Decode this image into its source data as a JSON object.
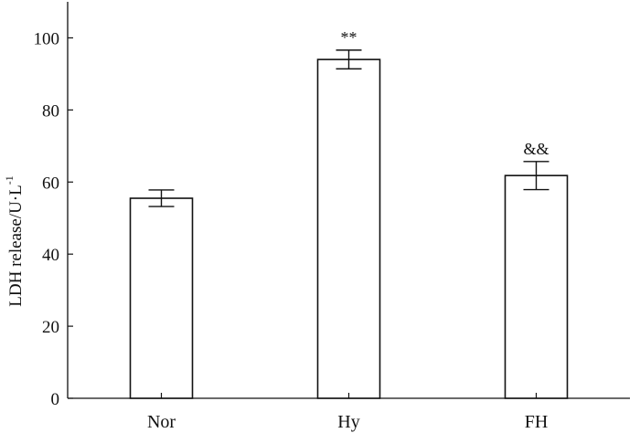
{
  "chart_data": {
    "type": "bar",
    "categories": [
      "Nor",
      "Hy",
      "FH"
    ],
    "values": [
      55.5,
      94,
      61.8
    ],
    "errors": [
      2.3,
      2.6,
      3.9
    ],
    "annotations": [
      "",
      "**",
      "&&"
    ],
    "ylabel": "LDH release/U·L",
    "ylabel_superscript": "-1",
    "ylim": [
      0,
      110
    ],
    "yticks": [
      0,
      20,
      40,
      60,
      80,
      100
    ],
    "grid": false,
    "bar_fill": "#ffffff",
    "line_color": "#111111"
  }
}
